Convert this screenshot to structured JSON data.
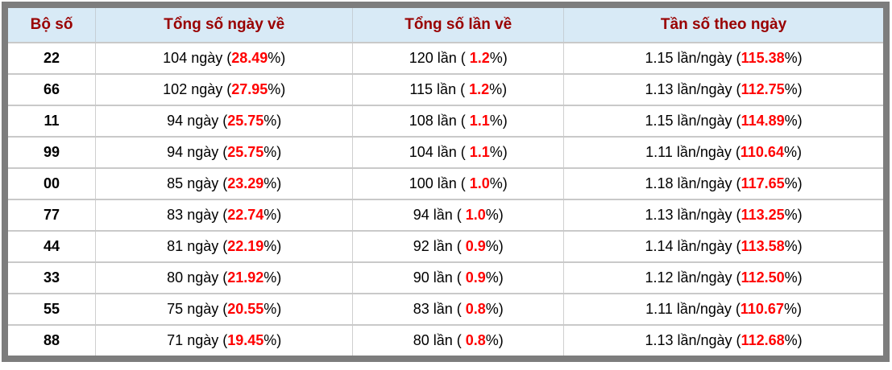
{
  "colors": {
    "frame_border": "#7d7d7d",
    "header_background": "#d8eaf6",
    "header_text": "#990000",
    "highlight_red": "#ff0000",
    "row_separator": "#c9c9c9",
    "body_text": "#000000"
  },
  "table": {
    "columns": [
      {
        "label": "Bộ số"
      },
      {
        "label": "Tổng số ngày về"
      },
      {
        "label": "Tổng số lần về"
      },
      {
        "label": "Tần số theo ngày"
      }
    ],
    "rows": [
      {
        "pair": "22",
        "days_prefix": "104 ngày (",
        "days_red": "28.49",
        "days_suffix": "%)",
        "times_prefix": "120 lần ( ",
        "times_red": "1.2",
        "times_suffix": "%)",
        "freq_prefix": "1.15 lần/ngày (",
        "freq_red": "115.38",
        "freq_suffix": "%)"
      },
      {
        "pair": "66",
        "days_prefix": "102 ngày (",
        "days_red": "27.95",
        "days_suffix": "%)",
        "times_prefix": "115 lần ( ",
        "times_red": "1.2",
        "times_suffix": "%)",
        "freq_prefix": "1.13 lần/ngày (",
        "freq_red": "112.75",
        "freq_suffix": "%)"
      },
      {
        "pair": "11",
        "days_prefix": "94 ngày (",
        "days_red": "25.75",
        "days_suffix": "%)",
        "times_prefix": "108 lần ( ",
        "times_red": "1.1",
        "times_suffix": "%)",
        "freq_prefix": "1.15 lần/ngày (",
        "freq_red": "114.89",
        "freq_suffix": "%)"
      },
      {
        "pair": "99",
        "days_prefix": "94 ngày (",
        "days_red": "25.75",
        "days_suffix": "%)",
        "times_prefix": "104 lần ( ",
        "times_red": "1.1",
        "times_suffix": "%)",
        "freq_prefix": "1.11 lần/ngày (",
        "freq_red": "110.64",
        "freq_suffix": "%)"
      },
      {
        "pair": "00",
        "days_prefix": "85 ngày (",
        "days_red": "23.29",
        "days_suffix": "%)",
        "times_prefix": "100 lần ( ",
        "times_red": "1.0",
        "times_suffix": "%)",
        "freq_prefix": "1.18 lần/ngày (",
        "freq_red": "117.65",
        "freq_suffix": "%)"
      },
      {
        "pair": "77",
        "days_prefix": "83 ngày (",
        "days_red": "22.74",
        "days_suffix": "%)",
        "times_prefix": "94 lần ( ",
        "times_red": "1.0",
        "times_suffix": "%)",
        "freq_prefix": "1.13 lần/ngày (",
        "freq_red": "113.25",
        "freq_suffix": "%)"
      },
      {
        "pair": "44",
        "days_prefix": "81 ngày (",
        "days_red": "22.19",
        "days_suffix": "%)",
        "times_prefix": "92 lần ( ",
        "times_red": "0.9",
        "times_suffix": "%)",
        "freq_prefix": "1.14 lần/ngày (",
        "freq_red": "113.58",
        "freq_suffix": "%)"
      },
      {
        "pair": "33",
        "days_prefix": "80 ngày (",
        "days_red": "21.92",
        "days_suffix": "%)",
        "times_prefix": "90 lần ( ",
        "times_red": "0.9",
        "times_suffix": "%)",
        "freq_prefix": "1.12 lần/ngày (",
        "freq_red": "112.50",
        "freq_suffix": "%)"
      },
      {
        "pair": "55",
        "days_prefix": "75 ngày (",
        "days_red": "20.55",
        "days_suffix": "%)",
        "times_prefix": "83 lần ( ",
        "times_red": "0.8",
        "times_suffix": "%)",
        "freq_prefix": "1.11 lần/ngày (",
        "freq_red": "110.67",
        "freq_suffix": "%)"
      },
      {
        "pair": "88",
        "days_prefix": "71 ngày (",
        "days_red": "19.45",
        "days_suffix": "%)",
        "times_prefix": "80 lần ( ",
        "times_red": "0.8",
        "times_suffix": "%)",
        "freq_prefix": "1.13 lần/ngày (",
        "freq_red": "112.68",
        "freq_suffix": "%)"
      }
    ]
  }
}
